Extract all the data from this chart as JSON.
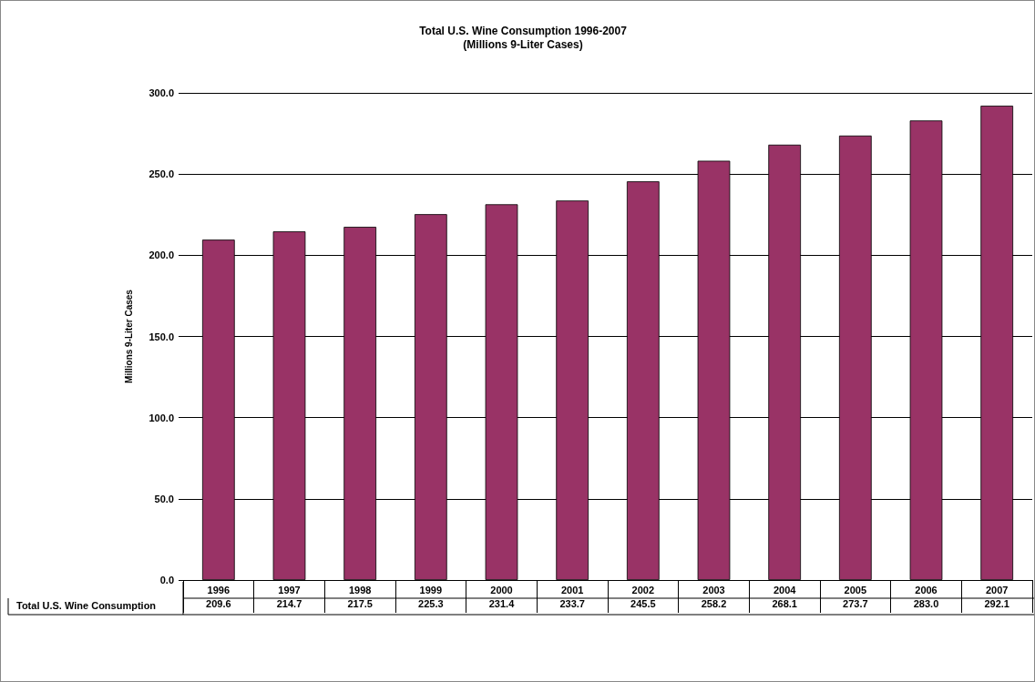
{
  "chart_data": {
    "type": "bar",
    "title": "Total U.S. Wine Consumption 1996-2007",
    "subtitle": "(Millions 9-Liter Cases)",
    "ylabel": "Millions 9-Liter Cases",
    "categories": [
      "1996",
      "1997",
      "1998",
      "1999",
      "2000",
      "2001",
      "2002",
      "2003",
      "2004",
      "2005",
      "2006",
      "2007"
    ],
    "series": [
      {
        "name": "Total U.S. Wine Consumption",
        "color": "#993366",
        "values": [
          209.6,
          214.7,
          217.5,
          225.3,
          231.4,
          233.7,
          245.5,
          258.2,
          268.1,
          273.7,
          283.0,
          292.1
        ],
        "value_labels": [
          "209.6",
          "214.7",
          "217.5",
          "225.3",
          "231.4",
          "233.7",
          "245.5",
          "258.2",
          "268.1",
          "273.7",
          "283.0",
          "292.1"
        ]
      }
    ],
    "ylim": [
      0,
      300
    ],
    "yticks": [
      {
        "value": 0,
        "label": "0.0"
      },
      {
        "value": 50,
        "label": "50.0"
      },
      {
        "value": 100,
        "label": "100.0"
      },
      {
        "value": 150,
        "label": "150.0"
      },
      {
        "value": 200,
        "label": "200.0"
      },
      {
        "value": 250,
        "label": "250.0"
      },
      {
        "value": 300,
        "label": "300.0"
      }
    ],
    "grid": "y",
    "legend": "bottom left"
  }
}
